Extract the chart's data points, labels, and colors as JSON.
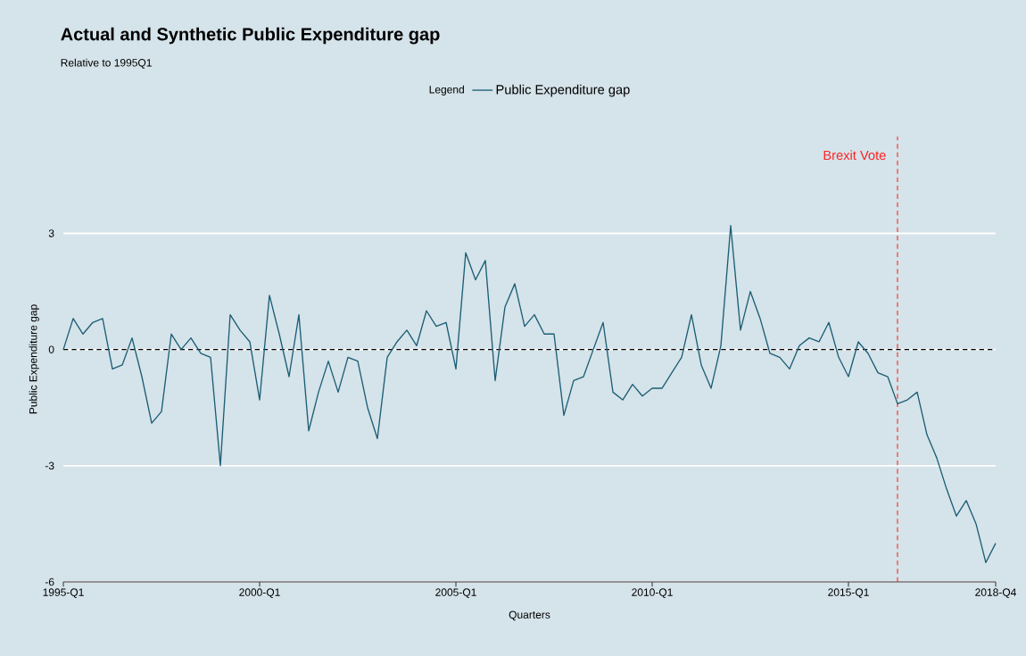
{
  "chart_data": {
    "type": "line",
    "title": "Actual and Synthetic Public Expenditure gap",
    "subtitle": "Relative to 1995Q1",
    "xlabel": "Quarters",
    "ylabel": "Public Expenditure gap",
    "legend_title": "Legend",
    "legend": "top",
    "grid": "y",
    "x": [
      "1995-01",
      "1995-04",
      "1995-07",
      "1995-10",
      "1996-01",
      "1996-04",
      "1996-07",
      "1996-10",
      "1997-01",
      "1997-04",
      "1997-07",
      "1997-10",
      "1998-01",
      "1998-04",
      "1998-07",
      "1998-10",
      "1999-01",
      "1999-04",
      "1999-07",
      "1999-10",
      "2000-01",
      "2000-04",
      "2000-07",
      "2000-10",
      "2001-01",
      "2001-04",
      "2001-07",
      "2001-10",
      "2002-01",
      "2002-04",
      "2002-07",
      "2002-10",
      "2003-01",
      "2003-04",
      "2003-07",
      "2003-10",
      "2004-01",
      "2004-04",
      "2004-07",
      "2004-10",
      "2005-01",
      "2005-04",
      "2005-07",
      "2005-10",
      "2006-01",
      "2006-04",
      "2006-07",
      "2006-10",
      "2007-01",
      "2007-04",
      "2007-07",
      "2007-10",
      "2008-01",
      "2008-04",
      "2008-07",
      "2008-10",
      "2009-01",
      "2009-04",
      "2009-07",
      "2009-10",
      "2010-01",
      "2010-04",
      "2010-07",
      "2010-10",
      "2011-01",
      "2011-04",
      "2011-07",
      "2011-10",
      "2012-01",
      "2012-04",
      "2012-07",
      "2012-10",
      "2013-01",
      "2013-04",
      "2013-07",
      "2013-10",
      "2014-01",
      "2014-04",
      "2014-07",
      "2014-10",
      "2015-01",
      "2015-04",
      "2015-07",
      "2015-10",
      "2016-01",
      "2016-04",
      "2016-07",
      "2016-10",
      "2017-01",
      "2017-04",
      "2017-07",
      "2017-10",
      "2018-01",
      "2018-04",
      "2018-07",
      "2018-10"
    ],
    "series": [
      {
        "name": "Public Expenditure gap",
        "color": "#1b5e74",
        "values": [
          0,
          0.8,
          0.4,
          0.7,
          0.8,
          -0.5,
          -0.4,
          0.3,
          -0.7,
          -1.9,
          -1.6,
          0.4,
          0.0,
          0.3,
          -0.1,
          -0.2,
          -3.0,
          0.9,
          0.5,
          0.2,
          -1.3,
          1.4,
          0.4,
          -0.7,
          0.9,
          -2.1,
          -1.1,
          -0.3,
          -1.1,
          -0.2,
          -0.3,
          -1.5,
          -2.3,
          -0.2,
          0.2,
          0.5,
          0.1,
          1.0,
          0.6,
          0.7,
          -0.5,
          2.5,
          1.8,
          2.3,
          -0.8,
          1.1,
          1.7,
          0.6,
          0.9,
          0.4,
          0.4,
          -1.7,
          -0.8,
          -0.7,
          0.0,
          0.7,
          -1.1,
          -1.3,
          -0.9,
          -1.2,
          -1.0,
          -1.0,
          -0.6,
          -0.2,
          0.9,
          -0.4,
          -1.0,
          0.1,
          3.2,
          0.5,
          1.5,
          0.8,
          -0.1,
          -0.2,
          -0.5,
          0.1,
          0.3,
          0.2,
          0.7,
          -0.2,
          -0.7,
          0.2,
          -0.1,
          -0.6,
          -0.7,
          -1.4,
          -1.3,
          -1.1,
          -2.2,
          -2.8,
          -3.6,
          -4.3,
          -3.9,
          -4.5,
          -5.5,
          -5.0
        ]
      }
    ],
    "xlim": [
      "1995-01",
      "2018-10"
    ],
    "xticks": [
      {
        "value": "1995-01",
        "label": "1995-Q1"
      },
      {
        "value": "2000-01",
        "label": "2000-Q1"
      },
      {
        "value": "2005-01",
        "label": "2005-Q1"
      },
      {
        "value": "2010-01",
        "label": "2010-Q1"
      },
      {
        "value": "2015-01",
        "label": "2015-Q1"
      },
      {
        "value": "2018-10",
        "label": "2018-Q4"
      }
    ],
    "ylim": [
      -6,
      5.5
    ],
    "yticks": [
      -6,
      -3,
      0,
      3
    ],
    "line_style": "solid",
    "ref_lines": [
      {
        "axis": "y",
        "value": 0,
        "color": "#000000",
        "line_style": "dashed"
      },
      {
        "axis": "x",
        "value": "2016-04",
        "label": "Brexit Vote",
        "color": "#ff2020",
        "line_style": "dashed"
      }
    ]
  }
}
